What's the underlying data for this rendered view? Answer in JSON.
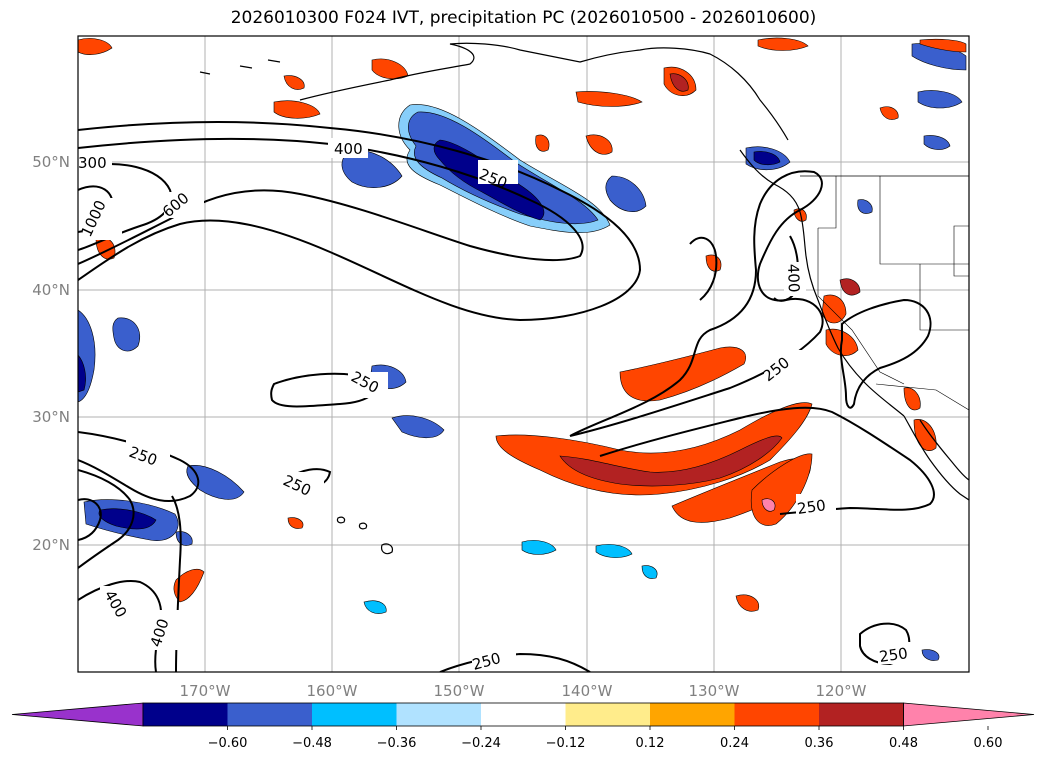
{
  "title": "2026010300 F024 IVT, precipitation PC (2026010500 - 2026010600)",
  "axes": {
    "lat_labels": [
      "50°N",
      "40°N",
      "30°N",
      "20°N"
    ],
    "lon_labels": [
      "170°W",
      "160°W",
      "150°W",
      "140°W",
      "130°W",
      "120°W"
    ]
  },
  "contour_labels": [
    "300",
    "400",
    "250",
    "600",
    "1000",
    "400",
    "250",
    "250",
    "250",
    "250",
    "400",
    "400",
    "250",
    "250",
    "250"
  ],
  "colorbar": {
    "ticks": [
      "−0.60",
      "−0.48",
      "−0.36",
      "−0.24",
      "−0.12",
      "0.12",
      "0.24",
      "0.36",
      "0.48",
      "0.60"
    ],
    "colors": [
      "#9932cc",
      "#00008b",
      "#3a5fcd",
      "#00bfff",
      "#b0e2ff",
      "#ffffff",
      "#ffec8b",
      "#ffa500",
      "#ff4500",
      "#b22222",
      "#ff82ab"
    ]
  },
  "palette": {
    "land": "#000000",
    "contour": "#000000",
    "grid": "#b0b0b0"
  }
}
